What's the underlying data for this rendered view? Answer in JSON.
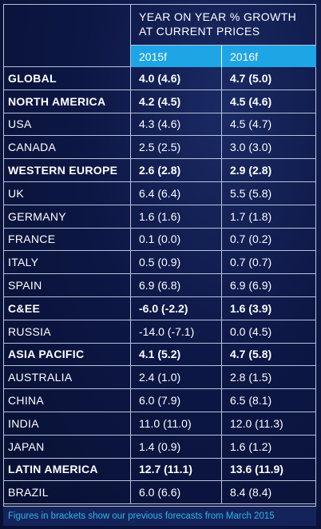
{
  "header": {
    "title_line1": "YEAR ON YEAR % GROWTH",
    "title_line2": "AT CURRENT PRICES",
    "col1": "2015f",
    "col2": "2016f"
  },
  "rows": [
    {
      "label": "GLOBAL",
      "v2015": "4.0 (4.6)",
      "v2016": "4.7 (5.0)",
      "bold": true
    },
    {
      "label": "NORTH AMERICA",
      "v2015": "4.2 (4.5)",
      "v2016": "4.5 (4.6)",
      "bold": true
    },
    {
      "label": "USA",
      "v2015": "4.3 (4.6)",
      "v2016": "4.5 (4.7)",
      "bold": false
    },
    {
      "label": "CANADA",
      "v2015": "2.5 (2.5)",
      "v2016": "3.0 (3.0)",
      "bold": false
    },
    {
      "label": "WESTERN EUROPE",
      "v2015": "2.6 (2.8)",
      "v2016": "2.9 (2.8)",
      "bold": true
    },
    {
      "label": "UK",
      "v2015": "6.4 (6.4)",
      "v2016": "5.5 (5.8)",
      "bold": false
    },
    {
      "label": "GERMANY",
      "v2015": "1.6 (1.6)",
      "v2016": "1.7 (1.8)",
      "bold": false
    },
    {
      "label": "FRANCE",
      "v2015": "0.1 (0.0)",
      "v2016": "0.7 (0.2)",
      "bold": false
    },
    {
      "label": "ITALY",
      "v2015": "0.5 (0.9)",
      "v2016": "0.7 (0.7)",
      "bold": false
    },
    {
      "label": "SPAIN",
      "v2015": "6.9 (6.8)",
      "v2016": "6.9 (6.9)",
      "bold": false
    },
    {
      "label": "C&EE",
      "v2015": "-6.0 (-2.2)",
      "v2016": "1.6 (3.9)",
      "bold": true
    },
    {
      "label": "RUSSIA",
      "v2015": "-14.0 (-7.1)",
      "v2016": "0.0 (4.5)",
      "bold": false
    },
    {
      "label": "ASIA PACIFIC",
      "v2015": "4.1 (5.2)",
      "v2016": "4.7 (5.8)",
      "bold": true
    },
    {
      "label": "AUSTRALIA",
      "v2015": "2.4 (1.0)",
      "v2016": "2.8 (1.5)",
      "bold": false
    },
    {
      "label": "CHINA",
      "v2015": "6.0 (7.9)",
      "v2016": "6.5 (8.1)",
      "bold": false
    },
    {
      "label": "INDIA",
      "v2015": "11.0 (11.0)",
      "v2016": "12.0 (11.3)",
      "bold": false
    },
    {
      "label": "JAPAN",
      "v2015": "1.4 (0.9)",
      "v2016": "1.6 (1.2)",
      "bold": false
    },
    {
      "label": "LATIN AMERICA",
      "v2015": "12.7 (11.1)",
      "v2016": "13.6 (11.9)",
      "bold": true
    },
    {
      "label": "BRAZIL",
      "v2015": "6.0 (6.6)",
      "v2016": "8.4 (8.4)",
      "bold": false
    }
  ],
  "footnote": "Figures in brackets show our previous forecasts from March 2015",
  "colors": {
    "background": "#0d1745",
    "year_header": "#1ea5e6",
    "footnote_text": "#2fb6ee",
    "rule": "#b8c2db"
  }
}
